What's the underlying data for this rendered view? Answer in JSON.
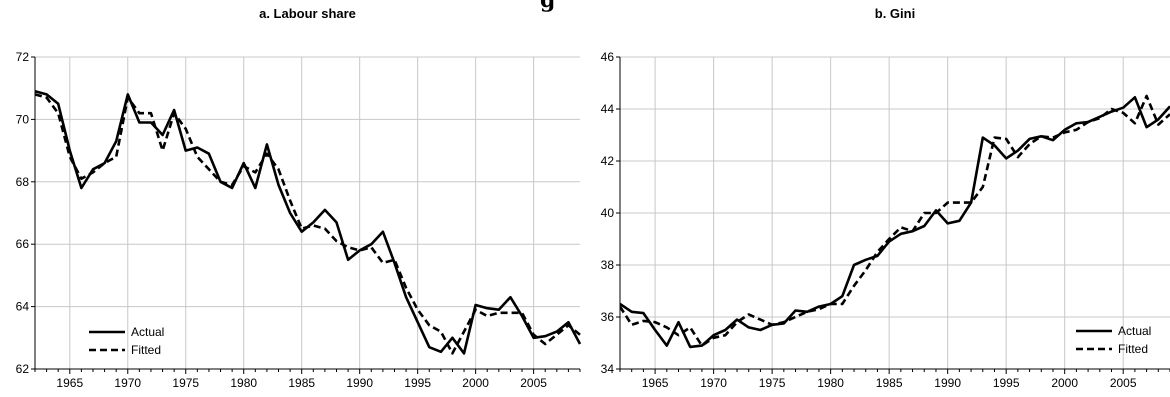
{
  "chart_data": [
    {
      "type": "line",
      "title": "a. Labour share",
      "xlim": [
        1962,
        2009
      ],
      "ylim": [
        62,
        72
      ],
      "yticks": [
        62,
        64,
        66,
        68,
        70,
        72
      ],
      "xticks": [
        1965,
        1970,
        1975,
        1980,
        1985,
        1990,
        1995,
        2000,
        2005
      ],
      "grid": true,
      "legend": "bottom-left",
      "x": [
        1962,
        1963,
        1964,
        1965,
        1966,
        1967,
        1968,
        1969,
        1970,
        1971,
        1972,
        1973,
        1974,
        1975,
        1976,
        1977,
        1978,
        1979,
        1980,
        1981,
        1982,
        1983,
        1984,
        1985,
        1986,
        1987,
        1988,
        1989,
        1990,
        1991,
        1992,
        1993,
        1994,
        1995,
        1996,
        1997,
        1998,
        1999,
        2000,
        2001,
        2002,
        2003,
        2004,
        2005,
        2006,
        2007,
        2008,
        2009
      ],
      "series": [
        {
          "name": "Actual",
          "style": "solid",
          "values": [
            70.9,
            70.8,
            70.5,
            69.0,
            67.8,
            68.4,
            68.6,
            69.3,
            70.8,
            69.9,
            69.9,
            69.5,
            70.3,
            69.0,
            69.1,
            68.9,
            68.0,
            67.8,
            68.6,
            67.8,
            69.2,
            67.9,
            67.0,
            66.4,
            66.7,
            67.1,
            66.7,
            65.5,
            65.8,
            66.0,
            66.4,
            65.4,
            64.3,
            63.5,
            62.7,
            62.55,
            63.0,
            62.5,
            64.05,
            63.95,
            63.9,
            64.3,
            63.7,
            63.0,
            63.05,
            63.2,
            63.5,
            62.8
          ]
        },
        {
          "name": "Fitted",
          "style": "dashed",
          "values": [
            70.8,
            70.7,
            70.2,
            68.8,
            68.1,
            68.3,
            68.6,
            68.8,
            70.7,
            70.2,
            70.2,
            69.0,
            70.2,
            69.7,
            68.8,
            68.4,
            68.0,
            67.9,
            68.5,
            68.3,
            68.9,
            68.4,
            67.4,
            66.5,
            66.6,
            66.5,
            66.1,
            65.9,
            65.8,
            65.9,
            65.4,
            65.5,
            64.6,
            63.9,
            63.4,
            63.2,
            62.5,
            63.2,
            63.9,
            63.7,
            63.8,
            63.8,
            63.8,
            63.1,
            62.8,
            63.1,
            63.4,
            63.1
          ]
        }
      ]
    },
    {
      "type": "line",
      "title": "b. Gini",
      "xlim": [
        1962,
        2009
      ],
      "ylim": [
        34,
        46
      ],
      "yticks": [
        34,
        36,
        38,
        40,
        42,
        44,
        46
      ],
      "xticks": [
        1965,
        1970,
        1975,
        1980,
        1985,
        1990,
        1995,
        2000,
        2005
      ],
      "grid": true,
      "legend": "bottom-right",
      "x": [
        1962,
        1963,
        1964,
        1965,
        1966,
        1967,
        1968,
        1969,
        1970,
        1971,
        1972,
        1973,
        1974,
        1975,
        1976,
        1977,
        1978,
        1979,
        1980,
        1981,
        1982,
        1983,
        1984,
        1985,
        1986,
        1987,
        1988,
        1989,
        1990,
        1991,
        1992,
        1993,
        1994,
        1995,
        1996,
        1997,
        1998,
        1999,
        2000,
        2001,
        2002,
        2003,
        2004,
        2005,
        2006,
        2007,
        2008,
        2009
      ],
      "series": [
        {
          "name": "Actual",
          "style": "solid",
          "values": [
            36.5,
            36.2,
            36.15,
            35.5,
            34.9,
            35.8,
            34.85,
            34.9,
            35.3,
            35.5,
            35.9,
            35.6,
            35.5,
            35.7,
            35.75,
            36.25,
            36.2,
            36.4,
            36.5,
            36.8,
            38.0,
            38.2,
            38.35,
            38.9,
            39.2,
            39.3,
            39.5,
            40.1,
            39.6,
            39.7,
            40.4,
            42.9,
            42.6,
            42.1,
            42.4,
            42.85,
            42.95,
            42.8,
            43.2,
            43.45,
            43.5,
            43.7,
            43.9,
            44.05,
            44.45,
            43.3,
            43.6,
            44.1
          ]
        },
        {
          "name": "Fitted",
          "style": "dashed",
          "values": [
            36.4,
            35.7,
            35.85,
            35.8,
            35.6,
            35.3,
            35.6,
            34.9,
            35.2,
            35.3,
            35.8,
            36.1,
            35.9,
            35.7,
            35.8,
            36.0,
            36.2,
            36.3,
            36.5,
            36.5,
            37.2,
            37.8,
            38.5,
            39.0,
            39.45,
            39.3,
            40.0,
            40.0,
            40.4,
            40.4,
            40.4,
            41.0,
            42.9,
            42.85,
            42.15,
            42.65,
            42.95,
            42.9,
            43.1,
            43.2,
            43.5,
            43.65,
            44.0,
            43.85,
            43.45,
            44.5,
            43.4,
            43.8
          ]
        }
      ]
    }
  ]
}
